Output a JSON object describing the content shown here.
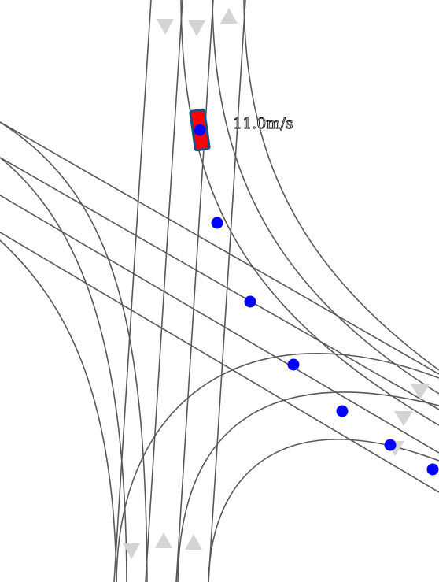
{
  "scene": {
    "ego_vehicle": {
      "speed_label": "11.0m/s",
      "body_color": "#ff0000",
      "outline_color": "#1a4f86",
      "center_marker_color": "#0000ff"
    },
    "lane_arrows": {
      "color": "#d4d4d4",
      "icons": [
        "arrow-down-icon",
        "arrow-up-icon"
      ]
    },
    "planned_path": {
      "marker_color": "#0000ff",
      "waypoint_count": 6
    },
    "road_line_color": "#585858",
    "background_color": "#ffffff"
  }
}
